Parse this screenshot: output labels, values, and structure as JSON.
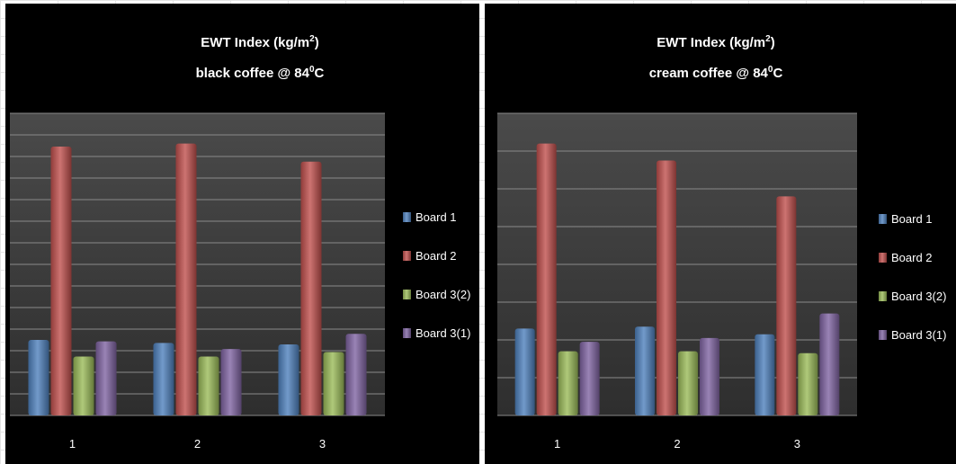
{
  "chart_data": [
    {
      "type": "bar",
      "title": "EWT Index (kg/m",
      "title_sup": "2",
      "title_end": ")",
      "subtitle": "black coffee @ 84",
      "subtitle_sup": "0",
      "subtitle_end": "C",
      "categories": [
        "1",
        "2",
        "3"
      ],
      "ylim": [
        0,
        10
      ],
      "grid": true,
      "legend": "right",
      "series": [
        {
          "name": "Board 1",
          "color": "#4f81bd",
          "values": [
            2.5,
            2.4,
            2.35
          ]
        },
        {
          "name": "Board 2",
          "color": "#c0504d",
          "values": [
            8.9,
            9.0,
            8.4
          ]
        },
        {
          "name": "Board 3(2)",
          "color": "#9bbb59",
          "values": [
            1.95,
            1.95,
            2.1
          ]
        },
        {
          "name": "Board 3(1)",
          "color": "#8064a2",
          "values": [
            2.45,
            2.2,
            2.7
          ]
        }
      ]
    },
    {
      "type": "bar",
      "title": "EWT Index (kg/m",
      "title_sup": "2",
      "title_end": ")",
      "subtitle": "cream coffee @ 84",
      "subtitle_sup": "0",
      "subtitle_end": "C",
      "categories": [
        "1",
        "2",
        "3"
      ],
      "ylim": [
        0,
        8
      ],
      "grid": true,
      "legend": "right",
      "series": [
        {
          "name": "Board 1",
          "color": "#4f81bd",
          "values": [
            2.3,
            2.35,
            2.15
          ]
        },
        {
          "name": "Board 2",
          "color": "#c0504d",
          "values": [
            7.2,
            6.75,
            5.8
          ]
        },
        {
          "name": "Board 3(2)",
          "color": "#9bbb59",
          "values": [
            1.7,
            1.7,
            1.65
          ]
        },
        {
          "name": "Board 3(1)",
          "color": "#8064a2",
          "values": [
            1.95,
            2.05,
            2.7
          ]
        }
      ]
    }
  ]
}
